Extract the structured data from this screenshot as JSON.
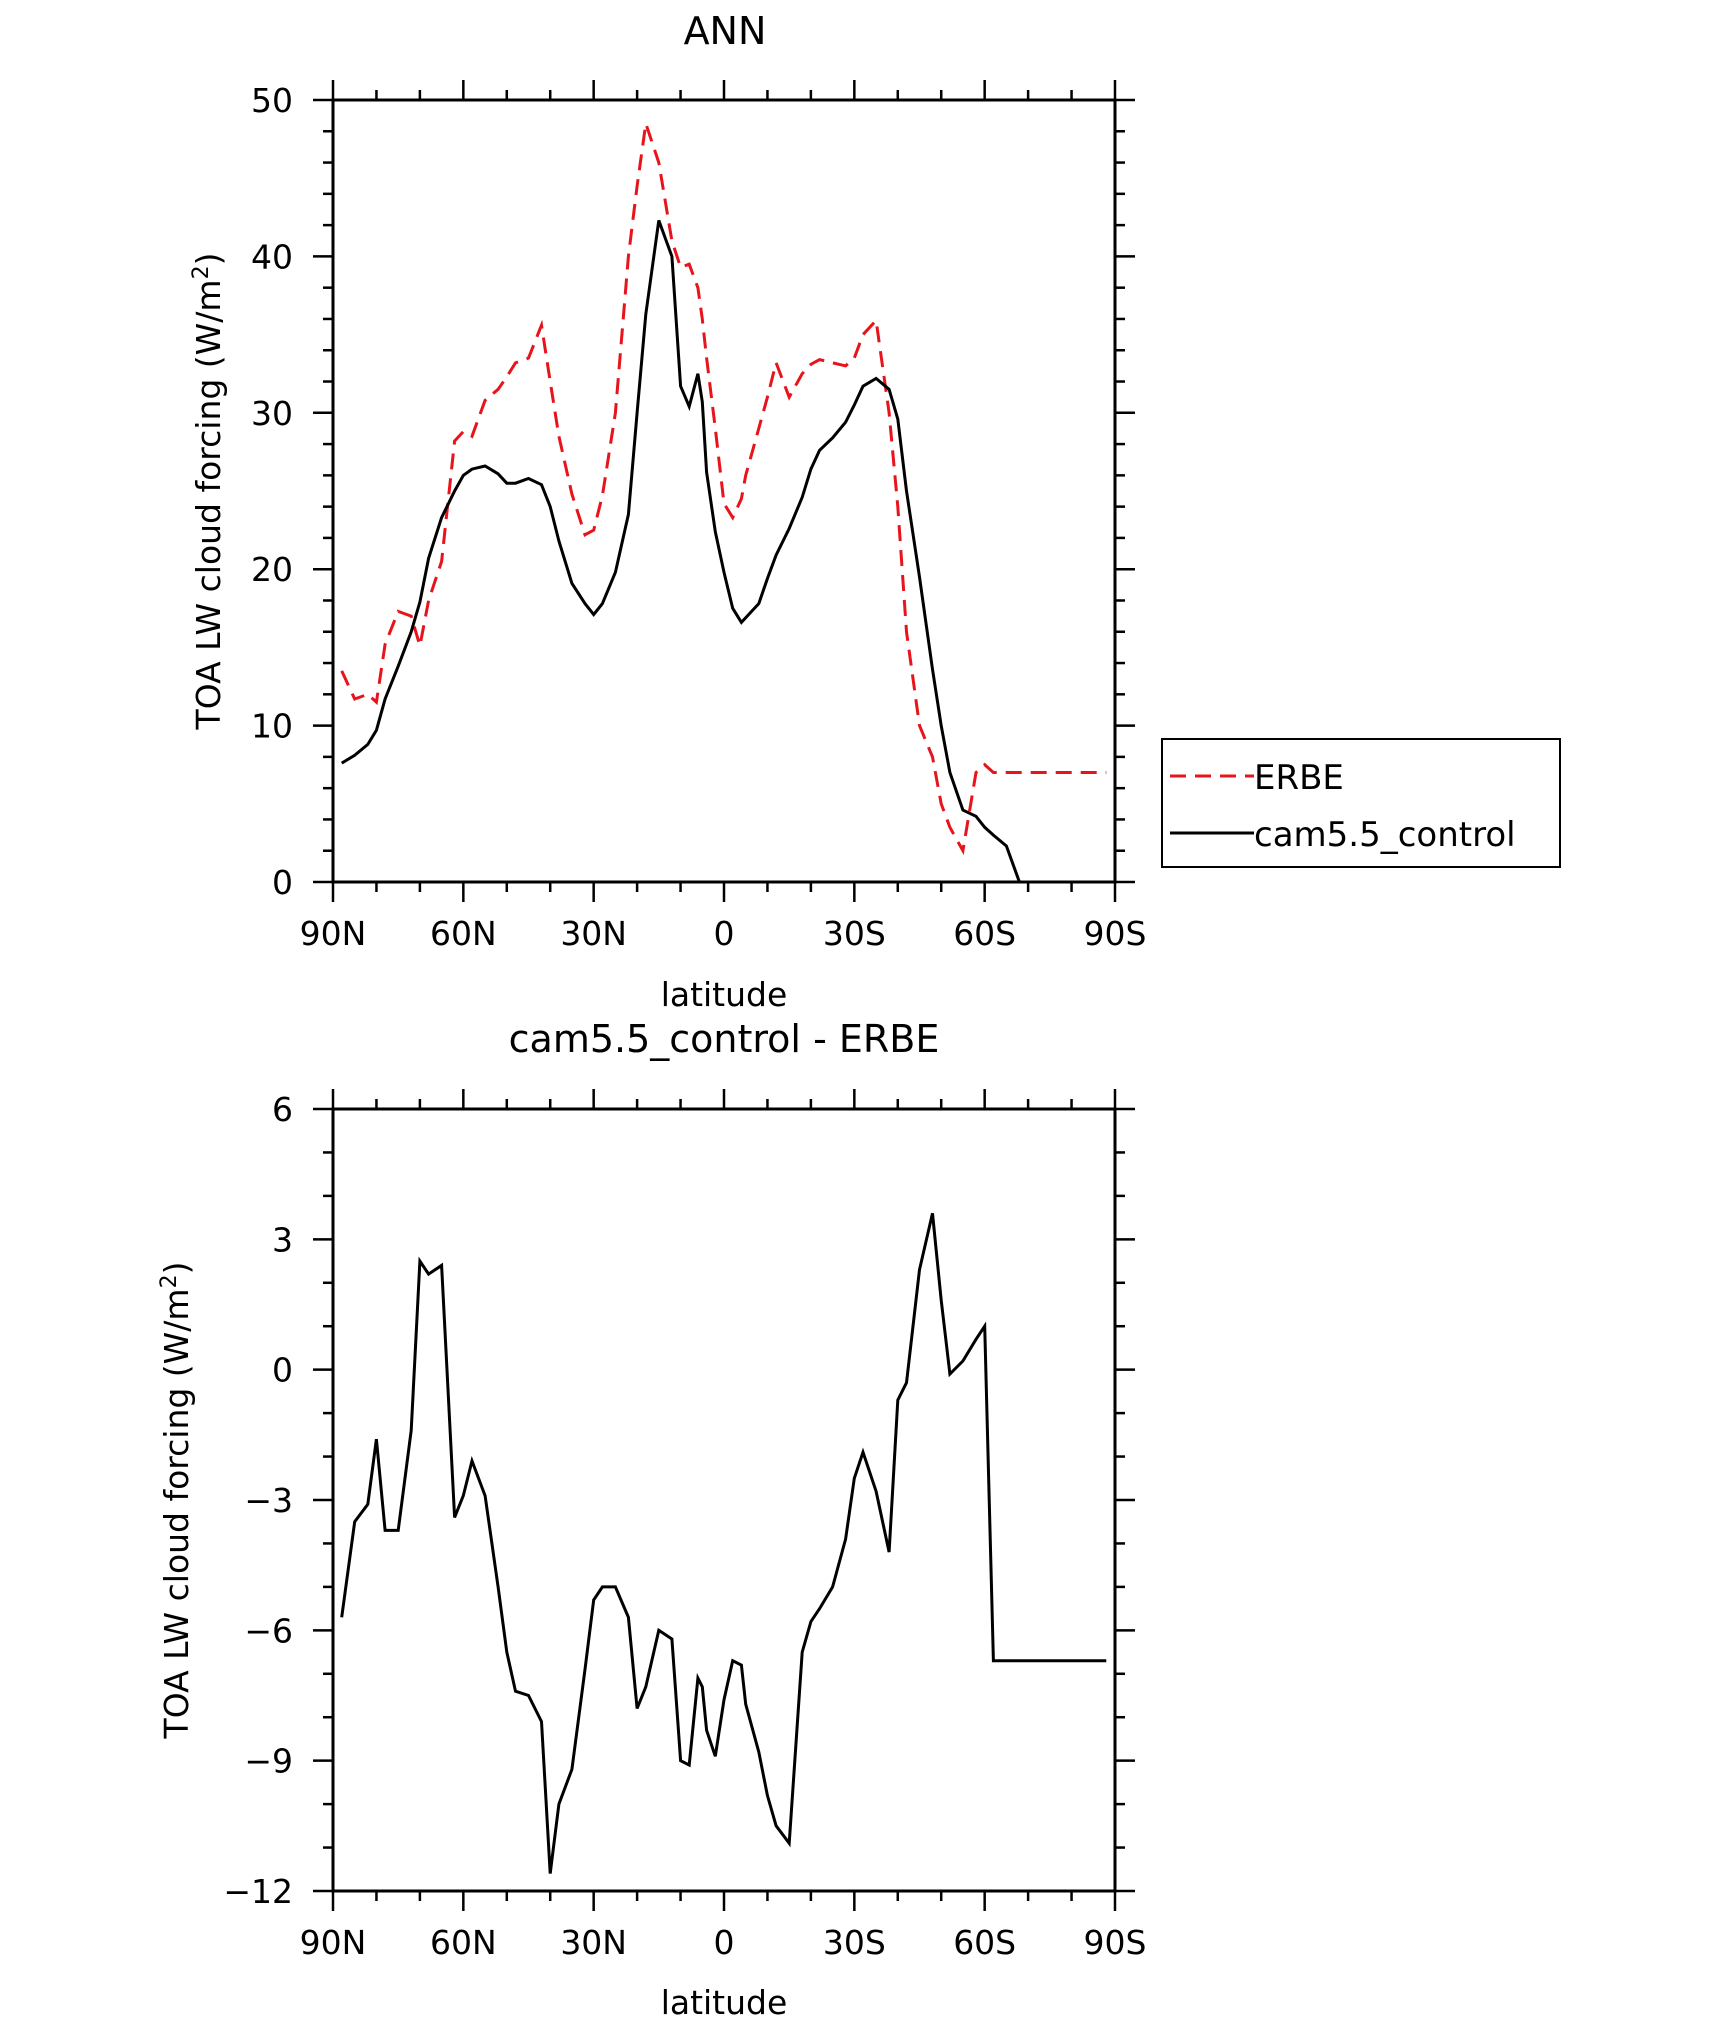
{
  "chart_data": [
    {
      "type": "line",
      "title": "ANN",
      "xlabel": "latitude",
      "ylabel": "TOA LW cloud forcing (W/m",
      "ylabel_sup": "2",
      "ylabel_end": ")",
      "xlim": [
        90,
        -90
      ],
      "ylim": [
        0,
        50
      ],
      "xticks": [
        90,
        60,
        30,
        0,
        -30,
        -60,
        -90
      ],
      "xtick_labels": [
        "90N",
        "60N",
        "30N",
        "0",
        "30S",
        "60S",
        "90S"
      ],
      "yticks": [
        0,
        10,
        20,
        30,
        40,
        50
      ],
      "ytick_labels": [
        "0",
        "10",
        "20",
        "30",
        "40",
        "50"
      ],
      "legend": {
        "position": "right",
        "entries": [
          "ERBE",
          "cam5.5_control"
        ]
      },
      "series": [
        {
          "name": "ERBE",
          "color": "#e8141b",
          "style": "dashed",
          "x": [
            88,
            85,
            82,
            80,
            78,
            75,
            72,
            70,
            68,
            65,
            62,
            60,
            58,
            55,
            52,
            50,
            48,
            45,
            42,
            40,
            38,
            35,
            32,
            30,
            28,
            25,
            22,
            20,
            18,
            15,
            12,
            10,
            8,
            6,
            5,
            4,
            2,
            0,
            -2,
            -4,
            -5,
            -8,
            -10,
            -12,
            -15,
            -18,
            -20,
            -22,
            -25,
            -28,
            -30,
            -32,
            -35,
            -38,
            -40,
            -42,
            -45,
            -48,
            -50,
            -52,
            -55,
            -58,
            -60,
            -62,
            -65,
            -68,
            -70,
            -72,
            -75,
            -78,
            -80,
            -82,
            -85,
            -88
          ],
          "y": [
            13.5,
            11.7,
            12.0,
            11.5,
            15.2,
            17.3,
            17.0,
            15.1,
            18.0,
            20.5,
            28.2,
            28.8,
            28.5,
            30.8,
            31.5,
            32.3,
            33.2,
            33.5,
            35.6,
            32.0,
            28.5,
            24.8,
            22.2,
            22.5,
            24.7,
            30.0,
            40.0,
            44.5,
            48.5,
            46.0,
            41.0,
            39.3,
            39.5,
            38.0,
            36.0,
            33.5,
            29.0,
            24.2,
            23.3,
            24.5,
            26.0,
            29.0,
            31.0,
            33.2,
            31.0,
            32.5,
            33.1,
            33.4,
            33.2,
            33.0,
            33.5,
            35.0,
            35.9,
            30.0,
            24.0,
            16.0,
            10.0,
            8.0,
            5.0,
            3.5,
            2.0,
            7.0,
            7.5,
            7.0,
            7.0,
            7.0,
            7.0,
            7.0,
            7.0,
            7.0,
            7.0,
            7.0,
            7.0,
            7.0
          ]
        },
        {
          "name": "cam5.5_control",
          "color": "#000000",
          "style": "solid",
          "x": [
            88,
            85,
            82,
            80,
            78,
            75,
            72,
            70,
            68,
            65,
            62,
            60,
            58,
            55,
            52,
            50,
            48,
            45,
            42,
            40,
            38,
            35,
            32,
            30,
            28,
            25,
            22,
            20,
            18,
            15,
            12,
            10,
            8,
            6,
            5,
            4,
            2,
            0,
            -2,
            -4,
            -5,
            -8,
            -10,
            -12,
            -15,
            -18,
            -20,
            -22,
            -25,
            -28,
            -30,
            -32,
            -35,
            -38,
            -40,
            -42,
            -45,
            -48,
            -50,
            -52,
            -55,
            -58,
            -60,
            -62,
            -65,
            -68,
            -70,
            -72,
            -75,
            -78,
            -80,
            -82,
            -85,
            -88
          ],
          "y": [
            7.6,
            8.1,
            8.8,
            9.7,
            11.7,
            13.8,
            16.0,
            17.9,
            20.7,
            23.3,
            25.0,
            26.0,
            26.4,
            26.6,
            26.1,
            25.5,
            25.5,
            25.8,
            25.4,
            24.0,
            21.8,
            19.1,
            17.8,
            17.1,
            17.8,
            19.8,
            23.5,
            30.0,
            36.3,
            42.3,
            40.0,
            31.7,
            30.4,
            32.5,
            30.7,
            26.2,
            22.4,
            19.8,
            17.5,
            16.6,
            16.9,
            17.8,
            19.4,
            20.9,
            22.6,
            24.6,
            26.4,
            27.6,
            28.4,
            29.4,
            30.5,
            31.7,
            32.2,
            31.5,
            29.6,
            25.0,
            19.5,
            13.6,
            10.0,
            7.0,
            4.6,
            4.2,
            3.5,
            3.0,
            2.3,
            0.0,
            0,
            0,
            0,
            0,
            0,
            0,
            0,
            0
          ]
        }
      ]
    },
    {
      "type": "line",
      "title": "cam5.5_control - ERBE",
      "xlabel": "latitude",
      "ylabel": "TOA LW cloud forcing (W/m",
      "ylabel_sup": "2",
      "ylabel_end": ")",
      "xlim": [
        90,
        -90
      ],
      "ylim": [
        -12,
        6
      ],
      "xticks": [
        90,
        60,
        30,
        0,
        -30,
        -60,
        -90
      ],
      "xtick_labels": [
        "90N",
        "60N",
        "30N",
        "0",
        "30S",
        "60S",
        "90S"
      ],
      "yticks": [
        -12,
        -9,
        -6,
        -3,
        0,
        3,
        6
      ],
      "ytick_labels": [
        "−12",
        "−9",
        "−6",
        "−3",
        "0",
        "3",
        "6"
      ],
      "series": [
        {
          "name": "cam5.5_control - ERBE",
          "color": "#000000",
          "style": "solid",
          "x": [
            88,
            85,
            82,
            80,
            78,
            75,
            72,
            70,
            68,
            65,
            62,
            60,
            58,
            55,
            52,
            50,
            48,
            45,
            42,
            40,
            38,
            35,
            32,
            30,
            28,
            25,
            22,
            20,
            18,
            15,
            12,
            10,
            8,
            6,
            5,
            4,
            2,
            0,
            -2,
            -4,
            -5,
            -8,
            -10,
            -12,
            -15,
            -18,
            -20,
            -22,
            -25,
            -28,
            -30,
            -32,
            -35,
            -38,
            -40,
            -42,
            -45,
            -48,
            -50,
            -52,
            -55,
            -58,
            -60,
            -62,
            -65,
            -68,
            -70,
            -72,
            -75,
            -78,
            -80,
            -82,
            -85,
            -88
          ],
          "y": [
            -5.7,
            -3.5,
            -3.1,
            -1.6,
            -3.7,
            -3.7,
            -1.4,
            2.5,
            2.2,
            2.4,
            -3.4,
            -2.9,
            -2.1,
            -2.9,
            -5.0,
            -6.5,
            -7.4,
            -7.5,
            -8.1,
            -11.6,
            -10.0,
            -9.2,
            -6.9,
            -5.3,
            -5.0,
            -5.0,
            -5.7,
            -7.8,
            -7.3,
            -6.0,
            -6.2,
            -9.0,
            -9.1,
            -7.1,
            -7.3,
            -8.3,
            -8.9,
            -7.6,
            -6.7,
            -6.8,
            -7.7,
            -8.8,
            -9.8,
            -10.5,
            -10.9,
            -6.5,
            -5.8,
            -5.5,
            -5.0,
            -3.9,
            -2.5,
            -1.9,
            -2.8,
            -4.2,
            -0.7,
            -0.3,
            2.3,
            3.6,
            1.6,
            -0.1,
            0.2,
            0.7,
            1.0,
            -6.7,
            -6.7,
            -6.7,
            -6.7,
            -6.7,
            -6.7,
            -6.7,
            -6.7,
            -6.7,
            -6.7,
            -6.7
          ]
        }
      ]
    }
  ]
}
